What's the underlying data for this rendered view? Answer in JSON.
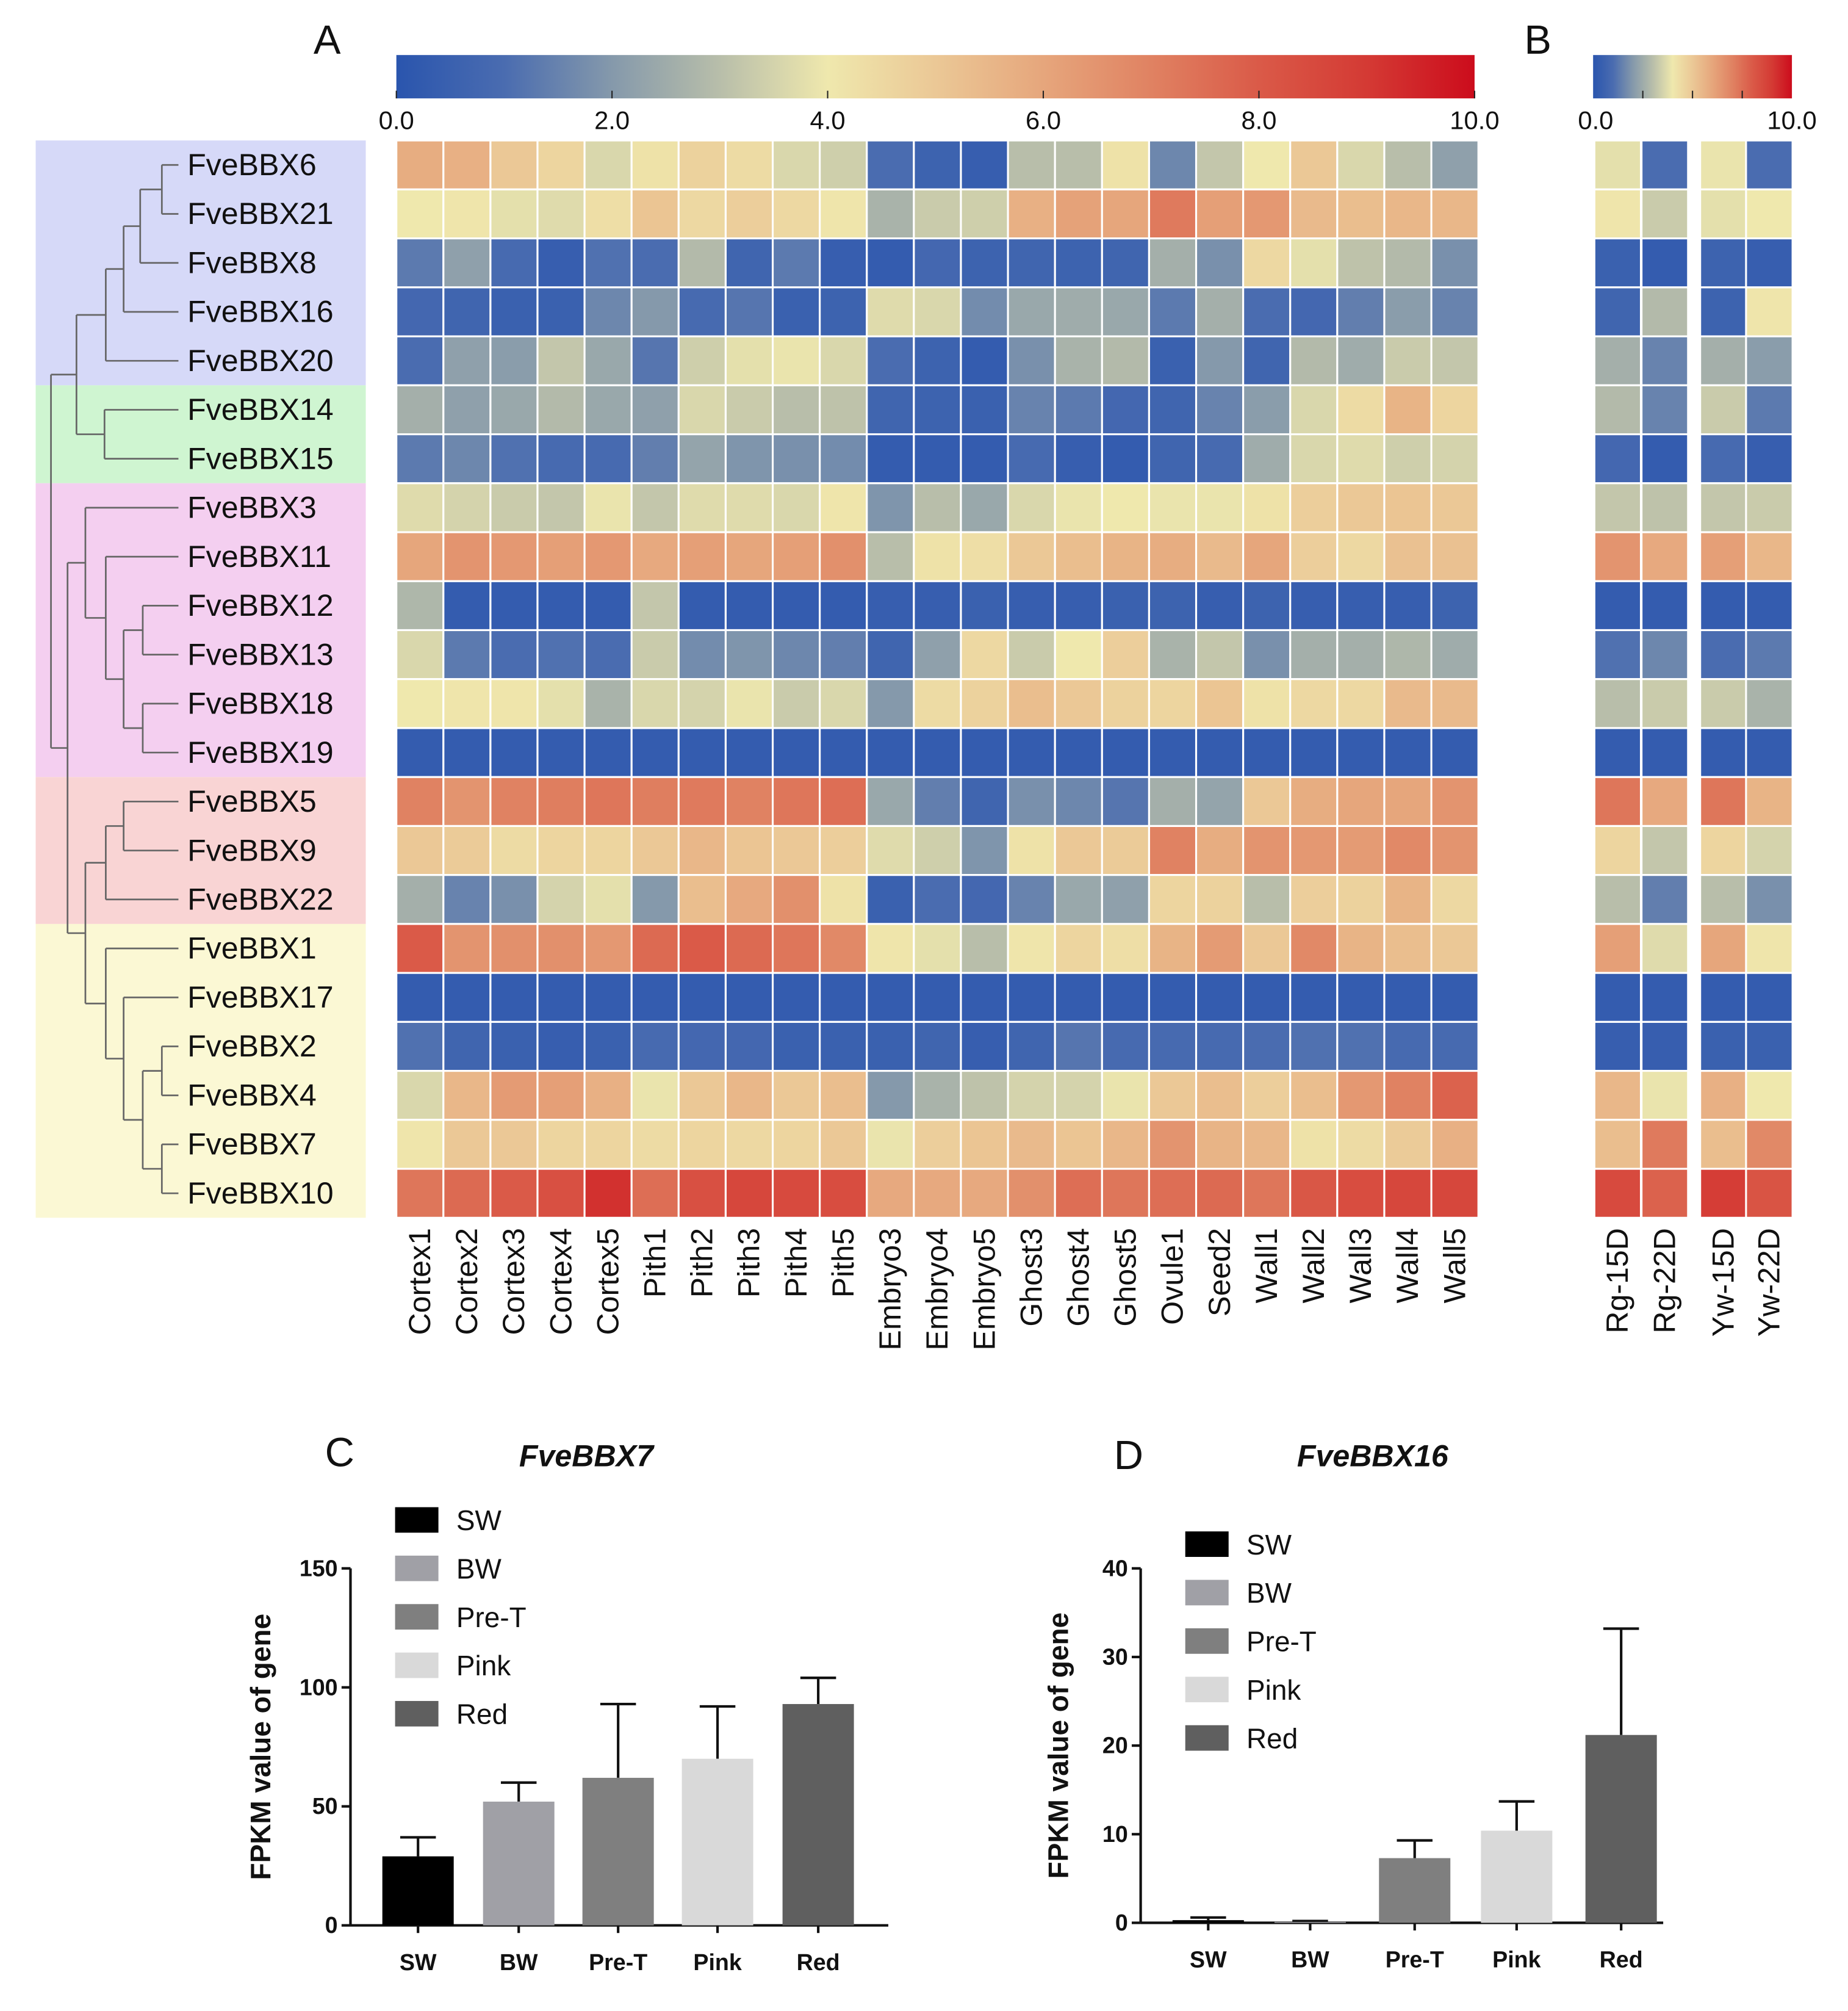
{
  "panels": {
    "a": "A",
    "b": "B",
    "c": "C",
    "d": "D"
  },
  "chart_data": [
    {
      "type": "heatmap",
      "panel": "A",
      "colorbar": {
        "min": 0,
        "max": 10,
        "ticks": [
          "0.0",
          "2.0",
          "4.0",
          "6.0",
          "8.0",
          "10.0"
        ]
      },
      "colorscale": [
        [
          0,
          "#2a55ae"
        ],
        [
          1,
          "#4a6cb0"
        ],
        [
          2,
          "#8599ab"
        ],
        [
          3,
          "#b8beaa"
        ],
        [
          4,
          "#efe8ad"
        ],
        [
          5,
          "#ebc896"
        ],
        [
          6,
          "#e6a67c"
        ],
        [
          7,
          "#e08262"
        ],
        [
          8,
          "#da5a48"
        ],
        [
          9,
          "#d43a34"
        ],
        [
          10,
          "#cc0c1c"
        ]
      ],
      "rows": [
        "FveBBX6",
        "FveBBX21",
        "FveBBX8",
        "FveBBX16",
        "FveBBX20",
        "FveBBX14",
        "FveBBX15",
        "FveBBX3",
        "FveBBX11",
        "FveBBX12",
        "FveBBX13",
        "FveBBX18",
        "FveBBX19",
        "FveBBX5",
        "FveBBX9",
        "FveBBX22",
        "FveBBX1",
        "FveBBX17",
        "FveBBX2",
        "FveBBX4",
        "FveBBX7",
        "FveBBX10"
      ],
      "row_groups": [
        {
          "rows": 5,
          "color": "#d6d9f8"
        },
        {
          "rows": 2,
          "color": "#cff5d1"
        },
        {
          "rows": 6,
          "color": "#f4cff0"
        },
        {
          "rows": 3,
          "color": "#f9d4d4"
        },
        {
          "rows": 6,
          "color": "#fbf8d4"
        }
      ],
      "columns": [
        "Cortex1",
        "Cortex2",
        "Cortex3",
        "Cortex4",
        "Cortex5",
        "Pith1",
        "Pith2",
        "Pith3",
        "Pith4",
        "Pith5",
        "Embryo3",
        "Embryo4",
        "Embryo5",
        "Ghost3",
        "Ghost4",
        "Ghost5",
        "Ovule1",
        "Seed2",
        "Wall1",
        "Wall2",
        "Wall3",
        "Wall4",
        "Wall5"
      ],
      "values": [
        [
          5.8,
          5.7,
          5.0,
          4.6,
          3.6,
          4.2,
          4.7,
          4.4,
          3.6,
          3.4,
          1.0,
          0.6,
          0.4,
          3.0,
          3.0,
          4.2,
          1.6,
          3.2,
          4.0,
          5.0,
          3.6,
          3.0,
          2.2
        ],
        [
          4.0,
          4.1,
          3.8,
          3.7,
          4.3,
          5.1,
          4.5,
          4.8,
          4.5,
          4.1,
          2.7,
          3.3,
          3.4,
          5.7,
          6.1,
          6.0,
          7.2,
          6.2,
          6.4,
          5.4,
          5.3,
          5.5,
          5.5
        ],
        [
          1.3,
          2.2,
          0.9,
          0.4,
          1.1,
          1.0,
          2.9,
          0.7,
          1.3,
          0.4,
          0.3,
          0.8,
          0.6,
          0.7,
          0.6,
          0.7,
          2.6,
          1.8,
          4.5,
          3.8,
          3.1,
          2.9,
          1.8
        ],
        [
          0.8,
          0.7,
          0.5,
          0.5,
          1.6,
          2.0,
          0.9,
          1.2,
          0.5,
          0.6,
          3.7,
          3.6,
          1.7,
          2.4,
          2.5,
          2.4,
          1.3,
          2.6,
          1.0,
          0.8,
          1.4,
          2.1,
          1.5
        ],
        [
          1.0,
          2.2,
          2.1,
          3.2,
          2.4,
          1.2,
          3.4,
          3.8,
          3.9,
          3.6,
          1.0,
          0.6,
          0.3,
          1.8,
          2.7,
          2.9,
          0.5,
          2.0,
          0.7,
          2.9,
          2.5,
          3.3,
          3.2
        ],
        [
          2.6,
          2.2,
          2.4,
          2.9,
          2.4,
          2.2,
          3.6,
          3.3,
          3.0,
          3.1,
          0.7,
          0.6,
          0.5,
          1.5,
          1.3,
          0.8,
          0.7,
          1.5,
          2.1,
          3.6,
          4.4,
          5.6,
          4.6
        ],
        [
          1.3,
          1.6,
          1.1,
          0.9,
          0.9,
          1.4,
          2.3,
          1.9,
          1.8,
          1.7,
          0.3,
          0.3,
          0.3,
          0.9,
          0.4,
          0.3,
          0.7,
          0.9,
          2.5,
          3.6,
          3.7,
          3.4,
          3.5
        ],
        [
          3.7,
          3.5,
          3.3,
          3.2,
          3.9,
          3.2,
          3.7,
          3.7,
          3.6,
          4.1,
          1.9,
          3.0,
          2.4,
          3.6,
          3.9,
          4.0,
          3.9,
          3.9,
          4.2,
          4.8,
          5.0,
          5.1,
          5.0
        ],
        [
          6.0,
          6.5,
          6.4,
          6.2,
          6.4,
          5.9,
          6.2,
          6.0,
          6.2,
          6.6,
          3.0,
          4.2,
          4.3,
          5.0,
          5.3,
          5.6,
          5.8,
          5.4,
          6.0,
          4.8,
          4.5,
          5.2,
          5.2
        ],
        [
          2.8,
          0.3,
          0.3,
          0.3,
          0.3,
          3.2,
          0.3,
          0.3,
          0.3,
          0.3,
          0.4,
          0.4,
          0.5,
          0.4,
          0.4,
          0.5,
          0.6,
          0.4,
          0.6,
          0.4,
          0.4,
          0.4,
          0.6
        ],
        [
          3.6,
          1.3,
          1.0,
          1.1,
          1.0,
          3.3,
          1.7,
          1.9,
          1.6,
          1.4,
          0.7,
          2.2,
          4.5,
          3.3,
          4.0,
          4.8,
          2.7,
          3.2,
          1.8,
          2.6,
          2.6,
          2.8,
          2.5
        ],
        [
          4.0,
          4.1,
          4.1,
          3.8,
          2.7,
          3.6,
          3.5,
          3.9,
          3.3,
          3.6,
          2.0,
          4.4,
          4.7,
          5.3,
          5.0,
          4.7,
          4.6,
          5.1,
          4.2,
          4.5,
          4.5,
          5.4,
          5.4
        ],
        [
          0.3,
          0.3,
          0.3,
          0.3,
          0.3,
          0.3,
          0.3,
          0.3,
          0.3,
          0.3,
          0.3,
          0.3,
          0.3,
          0.3,
          0.3,
          0.3,
          0.3,
          0.3,
          0.3,
          0.3,
          0.3,
          0.3,
          0.3
        ],
        [
          7.0,
          6.5,
          7.0,
          7.1,
          7.3,
          7.1,
          7.2,
          7.0,
          7.3,
          7.5,
          2.4,
          1.4,
          0.7,
          1.8,
          1.6,
          1.2,
          2.6,
          2.3,
          5.0,
          5.8,
          6.0,
          6.0,
          6.5
        ],
        [
          5.0,
          4.9,
          4.4,
          4.6,
          4.6,
          5.0,
          5.5,
          5.1,
          5.0,
          4.8,
          3.7,
          3.4,
          1.9,
          4.2,
          5.0,
          4.9,
          7.0,
          5.8,
          6.5,
          6.4,
          6.3,
          6.8,
          6.5
        ],
        [
          2.6,
          1.5,
          1.8,
          3.5,
          3.8,
          2.0,
          5.3,
          5.9,
          6.6,
          4.2,
          0.5,
          1.0,
          0.8,
          1.5,
          2.4,
          2.2,
          4.6,
          4.7,
          3.0,
          4.8,
          4.7,
          5.6,
          4.5
        ],
        [
          8.0,
          6.5,
          6.6,
          6.6,
          6.4,
          7.6,
          8.0,
          7.6,
          7.3,
          6.8,
          4.1,
          3.8,
          3.0,
          4.1,
          4.6,
          4.3,
          5.6,
          6.3,
          5.0,
          6.8,
          5.6,
          5.3,
          5.0
        ],
        [
          0.3,
          0.3,
          0.3,
          0.3,
          0.3,
          0.3,
          0.3,
          0.3,
          0.3,
          0.3,
          0.3,
          0.3,
          0.3,
          0.3,
          0.3,
          0.3,
          0.3,
          0.3,
          0.3,
          0.3,
          0.3,
          0.3,
          0.3
        ],
        [
          1.1,
          0.7,
          0.5,
          0.4,
          0.5,
          0.9,
          0.8,
          0.8,
          0.5,
          0.5,
          0.5,
          0.7,
          0.4,
          0.7,
          1.2,
          0.9,
          0.9,
          0.9,
          1.0,
          1.1,
          1.1,
          0.9,
          0.9
        ],
        [
          3.6,
          5.5,
          6.3,
          6.2,
          5.7,
          3.9,
          5.0,
          5.5,
          5.0,
          5.3,
          2.0,
          2.7,
          3.1,
          3.5,
          3.5,
          3.9,
          5.0,
          5.3,
          4.8,
          5.3,
          6.4,
          7.0,
          7.8
        ],
        [
          4.1,
          5.0,
          5.0,
          4.6,
          4.6,
          4.4,
          4.6,
          4.5,
          4.6,
          5.0,
          3.9,
          4.8,
          5.1,
          5.4,
          5.1,
          5.5,
          6.5,
          5.6,
          5.5,
          4.2,
          4.4,
          4.9,
          5.7
        ],
        [
          7.3,
          7.6,
          8.0,
          8.3,
          9.2,
          7.5,
          8.3,
          8.6,
          8.5,
          8.4,
          5.9,
          5.9,
          5.9,
          6.6,
          7.5,
          7.3,
          7.5,
          7.6,
          7.3,
          8.1,
          8.4,
          8.6,
          8.6
        ]
      ]
    },
    {
      "type": "heatmap",
      "panel": "B",
      "colorbar": {
        "min": 0,
        "max": 10,
        "ticks": [
          "0.0",
          "10.0"
        ]
      },
      "columns": [
        "Rg-15D",
        "Rg-22D",
        "Yw-15D",
        "Yw-22D"
      ],
      "values": [
        [
          3.8,
          1.0,
          3.9,
          1.0
        ],
        [
          4.1,
          3.3,
          3.8,
          4.0
        ],
        [
          0.5,
          0.3,
          0.6,
          0.4
        ],
        [
          0.7,
          2.9,
          0.6,
          4.1
        ],
        [
          2.6,
          1.5,
          2.6,
          2.1
        ],
        [
          2.9,
          1.5,
          3.3,
          1.3
        ],
        [
          0.8,
          0.3,
          0.9,
          0.4
        ],
        [
          3.2,
          3.1,
          3.2,
          3.3
        ],
        [
          6.5,
          5.9,
          6.2,
          5.5
        ],
        [
          0.3,
          0.3,
          0.3,
          0.3
        ],
        [
          1.1,
          1.6,
          1.0,
          1.3
        ],
        [
          3.0,
          3.3,
          3.3,
          2.7
        ],
        [
          0.3,
          0.3,
          0.3,
          0.3
        ],
        [
          7.3,
          5.9,
          7.3,
          5.6
        ],
        [
          4.6,
          3.2,
          4.6,
          3.5
        ],
        [
          3.0,
          1.4,
          3.0,
          1.8
        ],
        [
          6.2,
          3.7,
          6.0,
          4.1
        ],
        [
          0.3,
          0.3,
          0.3,
          0.3
        ],
        [
          0.4,
          0.4,
          0.5,
          0.5
        ],
        [
          5.5,
          3.9,
          5.7,
          4.0
        ],
        [
          5.3,
          7.2,
          5.3,
          6.8
        ],
        [
          8.5,
          7.8,
          8.9,
          8.2
        ]
      ]
    },
    {
      "type": "bar",
      "panel": "C",
      "title": "FveBBX7",
      "ylabel": "FPKM value of gene",
      "ylim": [
        0,
        150
      ],
      "yticks": [
        "0",
        "50",
        "100",
        "150"
      ],
      "categories": [
        "SW",
        "BW",
        "Pre-T",
        "Pink",
        "Red"
      ],
      "values": [
        29,
        52,
        62,
        70,
        93
      ],
      "errors": [
        8,
        8,
        31,
        22,
        11
      ],
      "colors": [
        "#000000",
        "#a0a0a6",
        "#7f7f7f",
        "#d9d9d9",
        "#5f5f5f"
      ],
      "legend": [
        "SW",
        "BW",
        "Pre-T",
        "Pink",
        "Red"
      ]
    },
    {
      "type": "bar",
      "panel": "D",
      "title": "FveBBX16",
      "ylabel": "FPKM value of gene",
      "ylim": [
        0,
        40
      ],
      "yticks": [
        "0",
        "10",
        "20",
        "30",
        "40"
      ],
      "categories": [
        "SW",
        "BW",
        "Pre-T",
        "Pink",
        "Red"
      ],
      "values": [
        0.3,
        0.1,
        7.3,
        10.4,
        21.2
      ],
      "errors": [
        0.3,
        0.1,
        2.0,
        3.3,
        12.0
      ],
      "colors": [
        "#000000",
        "#a0a0a6",
        "#7f7f7f",
        "#d9d9d9",
        "#5f5f5f"
      ],
      "legend": [
        "SW",
        "BW",
        "Pre-T",
        "Pink",
        "Red"
      ]
    }
  ]
}
